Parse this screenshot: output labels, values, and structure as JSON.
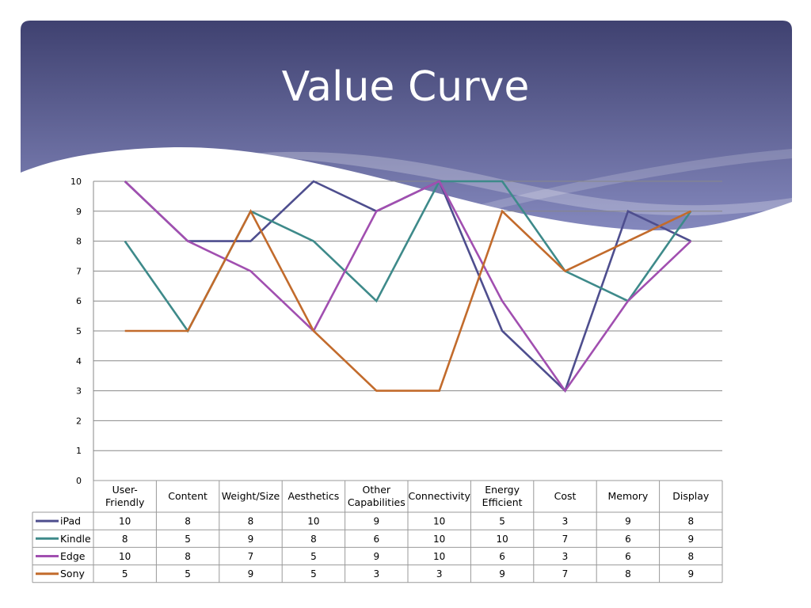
{
  "slide": {
    "title": "Value Curve"
  },
  "colors": {
    "header_dark": "#3f4170",
    "header_light": "#7b7fb3",
    "grid": "#888888",
    "table_border": "#999999"
  },
  "chart_data": {
    "type": "line",
    "title": "",
    "xlabel": "",
    "ylabel": "",
    "ylim": [
      0,
      10
    ],
    "yticks": [
      "0",
      "1",
      "2",
      "3",
      "4",
      "5",
      "6",
      "7",
      "8",
      "9",
      "10"
    ],
    "grid": true,
    "legend": "data-table",
    "categories": [
      [
        "User-",
        "Friendly"
      ],
      [
        "Content"
      ],
      [
        "Weight/Size"
      ],
      [
        "Aesthetics"
      ],
      [
        "Other",
        "Capabilities"
      ],
      [
        "Connectivity"
      ],
      [
        "Energy",
        "Efficient"
      ],
      [
        "Cost"
      ],
      [
        "Memory"
      ],
      [
        "Display"
      ]
    ],
    "series": [
      {
        "name": "iPad",
        "color": "#4e4e8e",
        "values": [
          10,
          8,
          8,
          10,
          9,
          10,
          5,
          3,
          9,
          8
        ]
      },
      {
        "name": "Kindle",
        "color": "#3e8a8a",
        "values": [
          8,
          5,
          9,
          8,
          6,
          10,
          10,
          7,
          6,
          9
        ]
      },
      {
        "name": "Edge",
        "color": "#a14fb0",
        "values": [
          10,
          8,
          7,
          5,
          9,
          10,
          6,
          3,
          6,
          8
        ]
      },
      {
        "name": "Sony",
        "color": "#c26b2c",
        "values": [
          5,
          5,
          9,
          5,
          3,
          3,
          9,
          7,
          8,
          9
        ]
      }
    ]
  }
}
